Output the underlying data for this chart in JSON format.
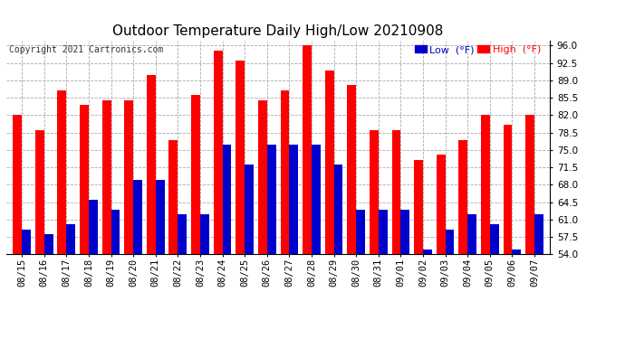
{
  "title": "Outdoor Temperature Daily High/Low 20210908",
  "copyright": "Copyright 2021 Cartronics.com",
  "legend_low": "Low  (°F)",
  "legend_high": "High  (°F)",
  "dates": [
    "08/15",
    "08/16",
    "08/17",
    "08/18",
    "08/19",
    "08/20",
    "08/21",
    "08/22",
    "08/23",
    "08/24",
    "08/25",
    "08/26",
    "08/27",
    "08/28",
    "08/29",
    "08/30",
    "08/31",
    "09/01",
    "09/02",
    "09/03",
    "09/04",
    "09/05",
    "09/06",
    "09/07"
  ],
  "highs": [
    82,
    79,
    87,
    84,
    85,
    85,
    90,
    77,
    86,
    95,
    93,
    85,
    87,
    96,
    91,
    88,
    79,
    79,
    73,
    74,
    77,
    82,
    80,
    82
  ],
  "lows": [
    59,
    58,
    60,
    65,
    63,
    69,
    69,
    62,
    62,
    76,
    72,
    76,
    76,
    76,
    72,
    63,
    63,
    63,
    55,
    59,
    62,
    60,
    55,
    62
  ],
  "high_color": "#ff0000",
  "low_color": "#0000cc",
  "ylim": [
    54,
    97
  ],
  "yticks": [
    54.0,
    57.5,
    61.0,
    64.5,
    68.0,
    71.5,
    75.0,
    78.5,
    82.0,
    85.5,
    89.0,
    92.5,
    96.0
  ],
  "background_color": "#ffffff",
  "grid_color": "#aaaaaa",
  "bar_width": 0.4,
  "title_fontsize": 11,
  "tick_fontsize": 7.5,
  "copyright_fontsize": 7
}
